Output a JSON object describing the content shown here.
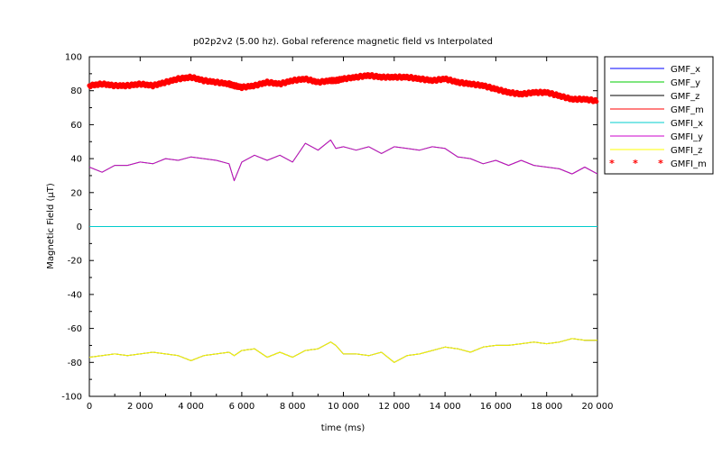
{
  "chart_data": {
    "type": "line",
    "title": "p02p2v2 (5.00 hz). Gobal reference magnetic field vs Interpolated",
    "xlabel": "time (ms)",
    "ylabel": "Magnetic Field (μT)",
    "xlim": [
      0,
      20000
    ],
    "ylim": [
      -100,
      100
    ],
    "xticks": [
      0,
      2000,
      4000,
      6000,
      8000,
      10000,
      12000,
      14000,
      16000,
      18000,
      20000
    ],
    "xtick_labels": [
      "0",
      "2 000",
      "4 000",
      "6 000",
      "8 000",
      "10 000",
      "12 000",
      "14 000",
      "16 000",
      "18 000",
      "20 000"
    ],
    "yticks": [
      -100,
      -80,
      -60,
      -40,
      -20,
      0,
      20,
      40,
      60,
      80,
      100
    ],
    "grid": false,
    "legend_position": "right",
    "x": [
      0,
      500,
      1000,
      1500,
      2000,
      2500,
      3000,
      3500,
      4000,
      4500,
      5000,
      5500,
      5700,
      6000,
      6500,
      7000,
      7500,
      8000,
      8500,
      9000,
      9500,
      9700,
      10000,
      10500,
      11000,
      11500,
      12000,
      12500,
      13000,
      13500,
      14000,
      14500,
      15000,
      15500,
      16000,
      16500,
      17000,
      17500,
      18000,
      18500,
      19000,
      19500,
      20000
    ],
    "series": [
      {
        "name": "GMF_x",
        "color": "#0000ff",
        "style": "line",
        "values": [
          0,
          0,
          0,
          0,
          0,
          0,
          0,
          0,
          0,
          0,
          0,
          0,
          0,
          0,
          0,
          0,
          0,
          0,
          0,
          0,
          0,
          0,
          0,
          0,
          0,
          0,
          0,
          0,
          0,
          0,
          0,
          0,
          0,
          0,
          0,
          0,
          0,
          0,
          0,
          0,
          0,
          0,
          0
        ]
      },
      {
        "name": "GMF_y",
        "color": "#00cc00",
        "style": "line",
        "values": [
          35,
          32,
          36,
          36,
          38,
          37,
          40,
          39,
          41,
          40,
          39,
          37,
          27,
          38,
          42,
          39,
          42,
          38,
          49,
          45,
          51,
          46,
          47,
          45,
          47,
          43,
          47,
          46,
          45,
          47,
          46,
          41,
          40,
          37,
          39,
          36,
          39,
          36,
          35,
          34,
          31,
          35,
          31
        ]
      },
      {
        "name": "GMF_z",
        "color": "#000000",
        "style": "line",
        "values": [
          -77,
          -76,
          -75,
          -76,
          -75,
          -74,
          -75,
          -76,
          -79,
          -76,
          -75,
          -74,
          -76,
          -73,
          -72,
          -77,
          -74,
          -77,
          -73,
          -72,
          -68,
          -70,
          -75,
          -75,
          -76,
          -74,
          -80,
          -76,
          -75,
          -73,
          -71,
          -72,
          -74,
          -71,
          -70,
          -70,
          -69,
          -68,
          -69,
          -68,
          -66,
          -67,
          -67
        ]
      },
      {
        "name": "GMF_m",
        "color": "#ff0000",
        "style": "line",
        "values": [
          83,
          84,
          83,
          83,
          84,
          83,
          85,
          87,
          88,
          86,
          85,
          84,
          83,
          82,
          83,
          85,
          84,
          86,
          87,
          85,
          86,
          86,
          87,
          88,
          89,
          88,
          88,
          88,
          87,
          86,
          87,
          85,
          84,
          83,
          81,
          79,
          78,
          79,
          79,
          77,
          75,
          75,
          74
        ]
      },
      {
        "name": "GMFI_x",
        "color": "#00cccc",
        "style": "line",
        "values": [
          0,
          0,
          0,
          0,
          0,
          0,
          0,
          0,
          0,
          0,
          0,
          0,
          0,
          0,
          0,
          0,
          0,
          0,
          0,
          0,
          0,
          0,
          0,
          0,
          0,
          0,
          0,
          0,
          0,
          0,
          0,
          0,
          0,
          0,
          0,
          0,
          0,
          0,
          0,
          0,
          0,
          0,
          0
        ]
      },
      {
        "name": "GMFI_y",
        "color": "#cc00cc",
        "style": "line",
        "values": [
          35,
          32,
          36,
          36,
          38,
          37,
          40,
          39,
          41,
          40,
          39,
          37,
          27,
          38,
          42,
          39,
          42,
          38,
          49,
          45,
          51,
          46,
          47,
          45,
          47,
          43,
          47,
          46,
          45,
          47,
          46,
          41,
          40,
          37,
          39,
          36,
          39,
          36,
          35,
          34,
          31,
          35,
          31
        ]
      },
      {
        "name": "GMFI_z",
        "color": "#ffff00",
        "style": "line",
        "values": [
          -77,
          -76,
          -75,
          -76,
          -75,
          -74,
          -75,
          -76,
          -79,
          -76,
          -75,
          -74,
          -76,
          -73,
          -72,
          -77,
          -74,
          -77,
          -73,
          -72,
          -68,
          -70,
          -75,
          -75,
          -76,
          -74,
          -80,
          -76,
          -75,
          -73,
          -71,
          -72,
          -74,
          -71,
          -70,
          -70,
          -69,
          -68,
          -69,
          -68,
          -66,
          -67,
          -67
        ]
      },
      {
        "name": "GMFI_m",
        "color": "#ff0000",
        "style": "marker",
        "values": [
          83,
          84,
          83,
          83,
          84,
          83,
          85,
          87,
          88,
          86,
          85,
          84,
          83,
          82,
          83,
          85,
          84,
          86,
          87,
          85,
          86,
          86,
          87,
          88,
          89,
          88,
          88,
          88,
          87,
          86,
          87,
          85,
          84,
          83,
          81,
          79,
          78,
          79,
          79,
          77,
          75,
          75,
          74
        ]
      }
    ]
  }
}
